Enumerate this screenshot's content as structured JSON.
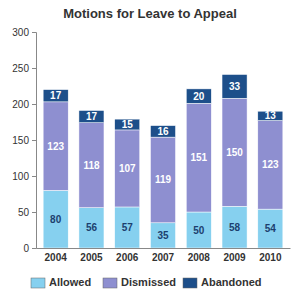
{
  "chart_data": {
    "type": "bar",
    "title": "Motions for Leave to Appeal",
    "categories": [
      "2004",
      "2005",
      "2006",
      "2007",
      "2008",
      "2009",
      "2010"
    ],
    "series": [
      {
        "name": "Allowed",
        "color": "#86d0ef",
        "values": [
          80,
          56,
          57,
          35,
          50,
          58,
          54
        ]
      },
      {
        "name": "Dismissed",
        "color": "#8e8fd0",
        "values": [
          123,
          118,
          107,
          119,
          151,
          150,
          123
        ]
      },
      {
        "name": "Abandoned",
        "color": "#1d4f8a",
        "values": [
          17,
          17,
          15,
          16,
          20,
          33,
          13
        ]
      }
    ],
    "ylim": [
      0,
      300
    ],
    "yticks": [
      0,
      50,
      100,
      150,
      200,
      250,
      300
    ],
    "stacked": true,
    "data_labels": true,
    "grid": false,
    "legend": "bottom"
  }
}
